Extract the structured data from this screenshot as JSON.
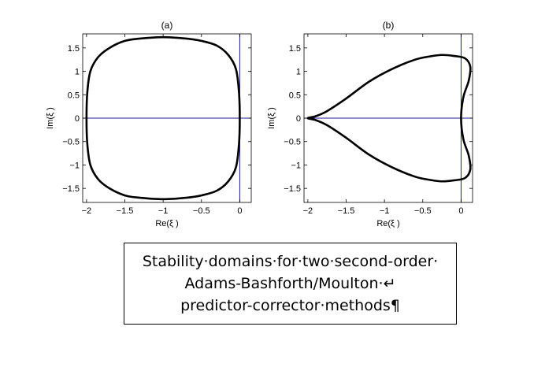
{
  "chart_data": [
    {
      "type": "line",
      "title": "(a)",
      "xlabel": "Re(ξ )",
      "ylabel": "Im(ξ )",
      "xlim": [
        -2.05,
        0.15
      ],
      "ylim": [
        -1.8,
        1.8
      ],
      "xticks": [
        -2,
        -1.5,
        -1,
        -0.5,
        0
      ],
      "xtick_labels": [
        "−2",
        "−1.5",
        "−1",
        "−0.5",
        "0"
      ],
      "yticks": [
        -1.5,
        -1,
        -0.5,
        0,
        0.5,
        1,
        1.5
      ],
      "ytick_labels": [
        "−1.5",
        "−1",
        "−0.5",
        "0",
        "0.5",
        "1",
        "1.5"
      ],
      "grid": false,
      "reference_lines": {
        "horizontal_y": 0,
        "vertical_x": 0,
        "color": "#1c1c8c"
      },
      "series": [
        {
          "color": "#000000",
          "closed": true,
          "x": [
            0.0,
            -0.01,
            -0.05,
            -0.15,
            -0.3,
            -0.5,
            -0.7,
            -1.0,
            -1.3,
            -1.5,
            -1.7,
            -1.85,
            -1.95,
            -1.99,
            -2.0,
            -1.99,
            -1.95,
            -1.85,
            -1.7,
            -1.5,
            -1.3,
            -1.0,
            -0.7,
            -0.5,
            -0.3,
            -0.15,
            -0.05,
            -0.01,
            0.0
          ],
          "y": [
            0.0,
            0.55,
            1.05,
            1.35,
            1.55,
            1.65,
            1.7,
            1.73,
            1.7,
            1.65,
            1.5,
            1.3,
            1.0,
            0.55,
            0.0,
            -0.55,
            -1.0,
            -1.3,
            -1.5,
            -1.65,
            -1.7,
            -1.73,
            -1.7,
            -1.65,
            -1.55,
            -1.35,
            -1.05,
            -0.55,
            0.0
          ]
        }
      ]
    },
    {
      "type": "line",
      "title": "(b)",
      "xlabel": "Re(ξ )",
      "ylabel": "Im(ξ )",
      "xlim": [
        -2.05,
        0.15
      ],
      "ylim": [
        -1.8,
        1.8
      ],
      "xticks": [
        -2,
        -1.5,
        -1,
        -0.5,
        0
      ],
      "xtick_labels": [
        "−2",
        "−1.5",
        "−1",
        "−0.5",
        "0"
      ],
      "yticks": [
        -1.5,
        -1,
        -0.5,
        0,
        0.5,
        1,
        1.5
      ],
      "ytick_labels": [
        "−1.5",
        "−1",
        "−0.5",
        "0",
        "0.5",
        "1",
        "1.5"
      ],
      "grid": false,
      "reference_lines": {
        "horizontal_y": 0,
        "vertical_x": 0,
        "color": "#1c1c8c"
      },
      "series": [
        {
          "color": "#000000",
          "closed": true,
          "x": [
            -2.0,
            -1.9,
            -1.75,
            -1.5,
            -1.2,
            -0.9,
            -0.6,
            -0.4,
            -0.25,
            -0.1,
            0.05,
            0.12,
            0.1,
            0.03,
            0.0,
            0.03,
            0.1,
            0.12,
            0.05,
            -0.1,
            -0.25,
            -0.4,
            -0.6,
            -0.9,
            -1.2,
            -1.5,
            -1.75,
            -1.9,
            -2.0
          ],
          "y": [
            0.0,
            0.04,
            0.15,
            0.42,
            0.78,
            1.05,
            1.25,
            1.32,
            1.35,
            1.33,
            1.28,
            1.1,
            0.8,
            0.45,
            0.0,
            -0.45,
            -0.8,
            -1.1,
            -1.28,
            -1.33,
            -1.35,
            -1.32,
            -1.25,
            -1.05,
            -0.78,
            -0.42,
            -0.15,
            -0.04,
            0.0
          ]
        }
      ]
    }
  ],
  "caption": {
    "lines": [
      "Stability·domains·for·two·second-order·",
      "Adams-Bashforth/Moulton·↵",
      "predictor-corrector·methods¶"
    ]
  }
}
